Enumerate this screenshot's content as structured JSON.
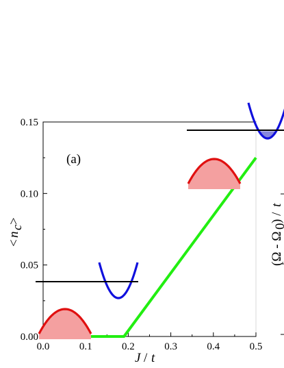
{
  "chart_data": {
    "type": "line",
    "panel_label": "(a)",
    "xlabel": "J / t",
    "ylabel": "<n_c>",
    "right_label": "(Ω - Ω0) / t",
    "xlim": [
      0.0,
      0.5
    ],
    "ylim": [
      0.0,
      0.15
    ],
    "x_ticks": [
      "0.0",
      "0.1",
      "0.2",
      "0.3",
      "0.4",
      "0.5"
    ],
    "y_ticks": [
      "0.00",
      "0.05",
      "0.10",
      "0.15"
    ],
    "grid": false,
    "series": [
      {
        "color": "#22ee11",
        "x": [
          0.0,
          0.19,
          0.5
        ],
        "y": [
          0.0,
          0.0,
          0.125
        ]
      }
    ],
    "insets": [
      {
        "at": [
          0.07,
          0.03
        ],
        "fermi_level_above_valence": true,
        "conduction_band_filled": false
      },
      {
        "at": [
          0.32,
          0.105
        ],
        "fermi_level_above_valence": false,
        "conduction_band_filled": true
      }
    ],
    "colors": {
      "valence": "#e01010",
      "valence_fill": "#f4a0a0",
      "conduction": "#1010dd",
      "conduction_fill": "#8888dd"
    }
  }
}
